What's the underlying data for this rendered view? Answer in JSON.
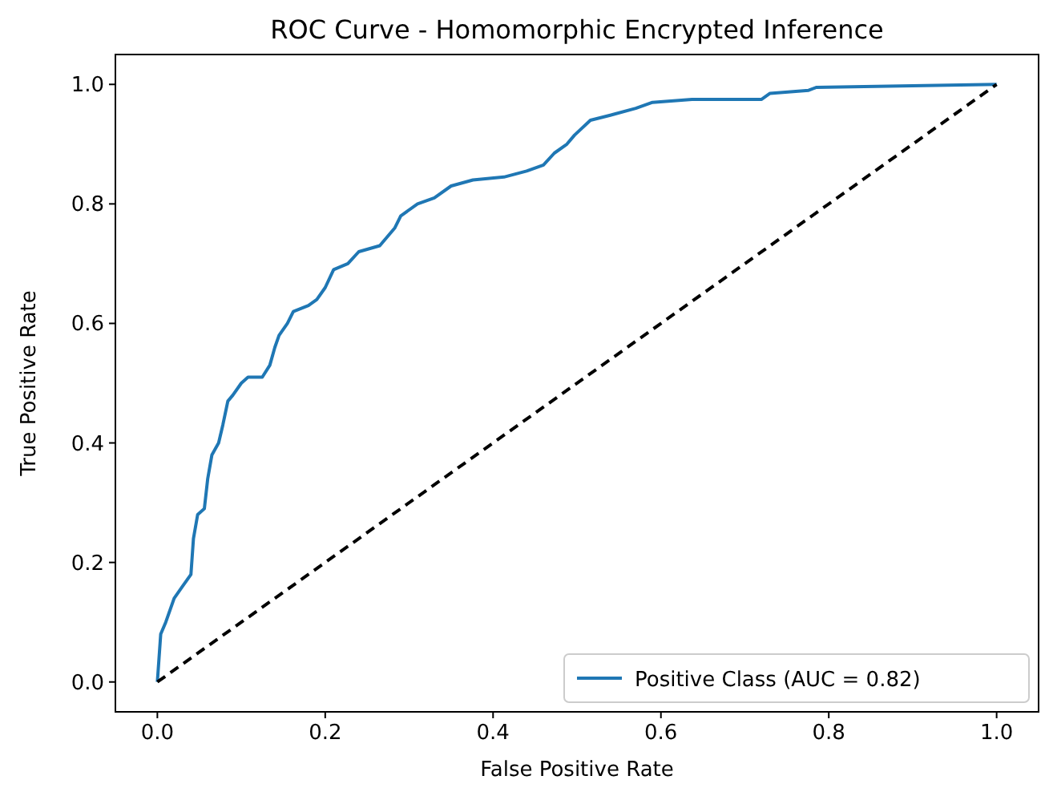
{
  "chart_data": {
    "type": "line",
    "title": "ROC Curve - Homomorphic Encrypted Inference",
    "xlabel": "False Positive Rate",
    "ylabel": "True Positive Rate",
    "xlim": [
      -0.05,
      1.05
    ],
    "ylim": [
      -0.05,
      1.05
    ],
    "xticks": [
      {
        "value": 0,
        "label": "0.0"
      },
      0.2,
      0.4,
      0.6,
      0.8,
      {
        "value": 1,
        "label": "1.0"
      }
    ],
    "yticks": [
      {
        "value": 0,
        "label": "0.0"
      },
      0.2,
      0.4,
      0.6,
      0.8,
      {
        "value": 1,
        "label": "1.0"
      }
    ],
    "legend": "bottom right",
    "grid": false,
    "series": [
      {
        "name": "Positive Class (AUC = 0.82)",
        "color": "#1f77b4",
        "line_style": "solid",
        "x": [
          0,
          0.002,
          0.004,
          0.01,
          0.02,
          0.03,
          0.04,
          0.043,
          0.048,
          0.056,
          0.06,
          0.065,
          0.073,
          0.078,
          0.084,
          0.09,
          0.1,
          0.108,
          0.125,
          0.134,
          0.14,
          0.145,
          0.155,
          0.162,
          0.18,
          0.19,
          0.2,
          0.21,
          0.227,
          0.24,
          0.265,
          0.283,
          0.29,
          0.31,
          0.33,
          0.35,
          0.376,
          0.413,
          0.44,
          0.46,
          0.473,
          0.488,
          0.497,
          0.516,
          0.544,
          0.57,
          0.59,
          0.637,
          0.72,
          0.73,
          0.776,
          0.785,
          1
        ],
        "values": [
          0,
          0.04,
          0.08,
          0.1,
          0.14,
          0.16,
          0.18,
          0.24,
          0.28,
          0.29,
          0.34,
          0.38,
          0.4,
          0.43,
          0.47,
          0.48,
          0.5,
          0.51,
          0.51,
          0.53,
          0.56,
          0.58,
          0.6,
          0.62,
          0.63,
          0.64,
          0.66,
          0.69,
          0.7,
          0.72,
          0.73,
          0.76,
          0.78,
          0.8,
          0.81,
          0.83,
          0.84,
          0.845,
          0.855,
          0.865,
          0.885,
          0.9,
          0.915,
          0.94,
          0.95,
          0.96,
          0.97,
          0.975,
          0.975,
          0.985,
          0.99,
          0.995,
          1
        ]
      },
      {
        "color": "#000000",
        "line_style": "dashed",
        "x": [
          0,
          1
        ],
        "values": [
          0,
          1
        ]
      }
    ]
  }
}
